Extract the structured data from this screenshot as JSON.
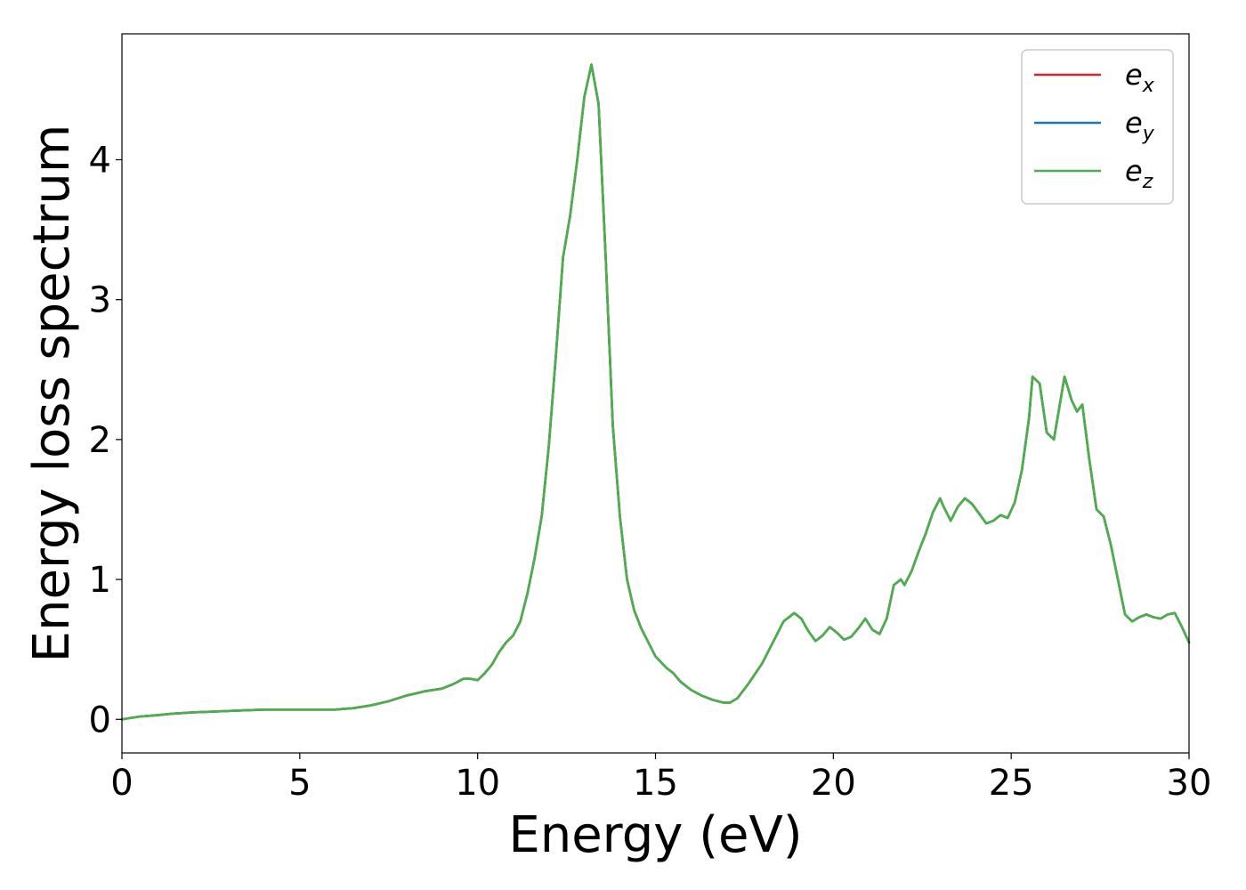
{
  "chart_data": {
    "type": "line",
    "title": "",
    "xlabel": "Energy (eV)",
    "ylabel": "Energy loss spectrum",
    "xlim": [
      0,
      30
    ],
    "ylim": [
      -0.24,
      4.9
    ],
    "xticks": [
      0,
      5,
      10,
      15,
      20,
      25,
      30
    ],
    "yticks": [
      0,
      1,
      2,
      3,
      4
    ],
    "xtick_labels": [
      "0",
      "5",
      "10",
      "15",
      "20",
      "25",
      "30"
    ],
    "ytick_labels": [
      "0",
      "1",
      "2",
      "3",
      "4"
    ],
    "grid": false,
    "legend_position": "top-right",
    "x": [
      0,
      0.5,
      1.0,
      1.4,
      2.0,
      3.0,
      4.0,
      5.0,
      5.5,
      6.0,
      6.5,
      7.0,
      7.5,
      8.0,
      8.5,
      9.0,
      9.3,
      9.6,
      9.8,
      10.0,
      10.2,
      10.4,
      10.6,
      10.8,
      11.0,
      11.2,
      11.4,
      11.6,
      11.8,
      12.0,
      12.2,
      12.4,
      12.6,
      12.8,
      13.0,
      13.2,
      13.4,
      13.6,
      13.8,
      14.0,
      14.2,
      14.4,
      14.6,
      14.8,
      15.0,
      15.3,
      15.5,
      15.7,
      16.0,
      16.3,
      16.6,
      16.9,
      17.1,
      17.3,
      17.6,
      18.0,
      18.3,
      18.6,
      18.9,
      19.1,
      19.3,
      19.5,
      19.7,
      19.9,
      20.1,
      20.3,
      20.5,
      20.7,
      20.9,
      21.1,
      21.3,
      21.5,
      21.7,
      21.9,
      22.0,
      22.2,
      22.4,
      22.6,
      22.8,
      23.0,
      23.1,
      23.3,
      23.5,
      23.7,
      23.9,
      24.1,
      24.3,
      24.5,
      24.7,
      24.9,
      25.1,
      25.3,
      25.5,
      25.6,
      25.8,
      26.0,
      26.2,
      26.4,
      26.5,
      26.7,
      26.85,
      27.0,
      27.2,
      27.4,
      27.6,
      27.8,
      28.0,
      28.2,
      28.4,
      28.6,
      28.8,
      29.0,
      29.2,
      29.4,
      29.6,
      29.8,
      30.0
    ],
    "series": [
      {
        "name": "e_x",
        "values": [
          0.0,
          0.02,
          0.03,
          0.04,
          0.05,
          0.06,
          0.07,
          0.07,
          0.07,
          0.07,
          0.08,
          0.1,
          0.13,
          0.17,
          0.2,
          0.22,
          0.25,
          0.29,
          0.29,
          0.28,
          0.33,
          0.39,
          0.48,
          0.55,
          0.6,
          0.7,
          0.9,
          1.15,
          1.45,
          1.95,
          2.6,
          3.3,
          3.6,
          4.0,
          4.45,
          4.68,
          4.4,
          3.3,
          2.1,
          1.45,
          1.0,
          0.78,
          0.65,
          0.55,
          0.45,
          0.37,
          0.33,
          0.27,
          0.21,
          0.17,
          0.14,
          0.12,
          0.12,
          0.15,
          0.25,
          0.4,
          0.55,
          0.7,
          0.76,
          0.72,
          0.63,
          0.56,
          0.6,
          0.66,
          0.62,
          0.57,
          0.59,
          0.65,
          0.72,
          0.64,
          0.61,
          0.72,
          0.96,
          1.0,
          0.96,
          1.06,
          1.2,
          1.33,
          1.48,
          1.58,
          1.52,
          1.42,
          1.52,
          1.58,
          1.54,
          1.47,
          1.4,
          1.42,
          1.46,
          1.44,
          1.55,
          1.78,
          2.15,
          2.45,
          2.4,
          2.05,
          2.0,
          2.3,
          2.45,
          2.28,
          2.2,
          2.25,
          1.85,
          1.5,
          1.45,
          1.25,
          1.0,
          0.75,
          0.7,
          0.73,
          0.75,
          0.73,
          0.72,
          0.75,
          0.76,
          0.66,
          0.55
        ]
      },
      {
        "name": "e_y",
        "values": [
          0.0,
          0.02,
          0.03,
          0.04,
          0.05,
          0.06,
          0.07,
          0.07,
          0.07,
          0.07,
          0.08,
          0.1,
          0.13,
          0.17,
          0.2,
          0.22,
          0.25,
          0.29,
          0.29,
          0.28,
          0.33,
          0.39,
          0.48,
          0.55,
          0.6,
          0.7,
          0.9,
          1.15,
          1.45,
          1.95,
          2.6,
          3.3,
          3.6,
          4.0,
          4.45,
          4.68,
          4.4,
          3.3,
          2.1,
          1.45,
          1.0,
          0.78,
          0.65,
          0.55,
          0.45,
          0.37,
          0.33,
          0.27,
          0.21,
          0.17,
          0.14,
          0.12,
          0.12,
          0.15,
          0.25,
          0.4,
          0.55,
          0.7,
          0.76,
          0.72,
          0.63,
          0.56,
          0.6,
          0.66,
          0.62,
          0.57,
          0.59,
          0.65,
          0.72,
          0.64,
          0.61,
          0.72,
          0.96,
          1.0,
          0.96,
          1.06,
          1.2,
          1.33,
          1.48,
          1.58,
          1.52,
          1.42,
          1.52,
          1.58,
          1.54,
          1.47,
          1.4,
          1.42,
          1.46,
          1.44,
          1.55,
          1.78,
          2.15,
          2.45,
          2.4,
          2.05,
          2.0,
          2.3,
          2.45,
          2.28,
          2.2,
          2.25,
          1.85,
          1.5,
          1.45,
          1.25,
          1.0,
          0.75,
          0.7,
          0.73,
          0.75,
          0.73,
          0.72,
          0.75,
          0.76,
          0.66,
          0.55
        ]
      },
      {
        "name": "e_z",
        "values": [
          0.0,
          0.02,
          0.03,
          0.04,
          0.05,
          0.06,
          0.07,
          0.07,
          0.07,
          0.07,
          0.08,
          0.1,
          0.13,
          0.17,
          0.2,
          0.22,
          0.25,
          0.29,
          0.29,
          0.28,
          0.33,
          0.39,
          0.48,
          0.55,
          0.6,
          0.7,
          0.9,
          1.15,
          1.45,
          1.95,
          2.6,
          3.3,
          3.6,
          4.0,
          4.45,
          4.68,
          4.4,
          3.3,
          2.1,
          1.45,
          1.0,
          0.78,
          0.65,
          0.55,
          0.45,
          0.37,
          0.33,
          0.27,
          0.21,
          0.17,
          0.14,
          0.12,
          0.12,
          0.15,
          0.25,
          0.4,
          0.55,
          0.7,
          0.76,
          0.72,
          0.63,
          0.56,
          0.6,
          0.66,
          0.62,
          0.57,
          0.59,
          0.65,
          0.72,
          0.64,
          0.61,
          0.72,
          0.96,
          1.0,
          0.96,
          1.06,
          1.2,
          1.33,
          1.48,
          1.58,
          1.52,
          1.42,
          1.52,
          1.58,
          1.54,
          1.47,
          1.4,
          1.42,
          1.46,
          1.44,
          1.55,
          1.78,
          2.15,
          2.45,
          2.4,
          2.05,
          2.0,
          2.3,
          2.45,
          2.28,
          2.2,
          2.25,
          1.85,
          1.5,
          1.45,
          1.25,
          1.0,
          0.75,
          0.7,
          0.73,
          0.75,
          0.73,
          0.72,
          0.75,
          0.76,
          0.66,
          0.55
        ]
      }
    ],
    "colors": [
      "#d62728",
      "#1f77b4",
      "#4daf4a"
    ],
    "legend": [
      {
        "base": "e",
        "sub": "x"
      },
      {
        "base": "e",
        "sub": "y"
      },
      {
        "base": "e",
        "sub": "z"
      }
    ]
  }
}
